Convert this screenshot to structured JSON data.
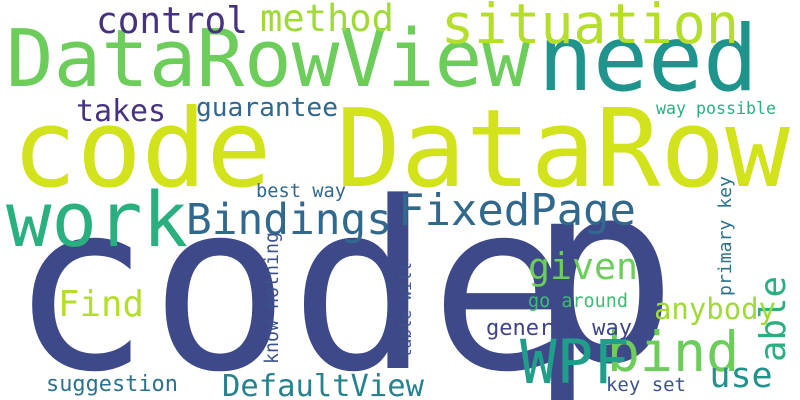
{
  "words": [
    {
      "text": "code",
      "color": "#3e4989"
    },
    {
      "text": "code DataRow",
      "color": "#d2e21b"
    },
    {
      "text": "p",
      "color": "#3e4989"
    },
    {
      "text": "DataRowView",
      "color": "#6ccd5a"
    },
    {
      "text": "need",
      "color": "#1f948c"
    },
    {
      "text": "work",
      "color": "#2ab07f"
    },
    {
      "text": "situation",
      "color": "#b5de2b"
    },
    {
      "text": "bind",
      "color": "#6ccd5a"
    },
    {
      "text": "WPF",
      "color": "#1f9e89"
    },
    {
      "text": "FixedPage",
      "color": "#31688e"
    },
    {
      "text": "Bindings",
      "color": "#31688e"
    },
    {
      "text": "control",
      "color": "#46327e"
    },
    {
      "text": "method",
      "color": "#a0da39"
    },
    {
      "text": "given",
      "color": "#6ccd5a"
    },
    {
      "text": "Find",
      "color": "#b5de2b"
    },
    {
      "text": "use",
      "color": "#21918c"
    },
    {
      "text": "able",
      "color": "#2ab07f"
    },
    {
      "text": "anybody",
      "color": "#a0da39"
    },
    {
      "text": "DefaultView",
      "color": "#26828e"
    },
    {
      "text": "takes",
      "color": "#46327e"
    },
    {
      "text": "guarantee",
      "color": "#31688e"
    },
    {
      "text": "generic way",
      "color": "#414487"
    },
    {
      "text": "suggestion",
      "color": "#2c728e"
    },
    {
      "text": "go around",
      "color": "#3fbc73"
    },
    {
      "text": "way possible",
      "color": "#2ab07f"
    },
    {
      "text": "best way",
      "color": "#31688e"
    },
    {
      "text": "key set",
      "color": "#3b528b"
    },
    {
      "text": "primary key",
      "color": "#2c728e"
    },
    {
      "text": "table will",
      "color": "#3b528b"
    },
    {
      "text": "know nothing",
      "color": "#3b528b"
    }
  ]
}
